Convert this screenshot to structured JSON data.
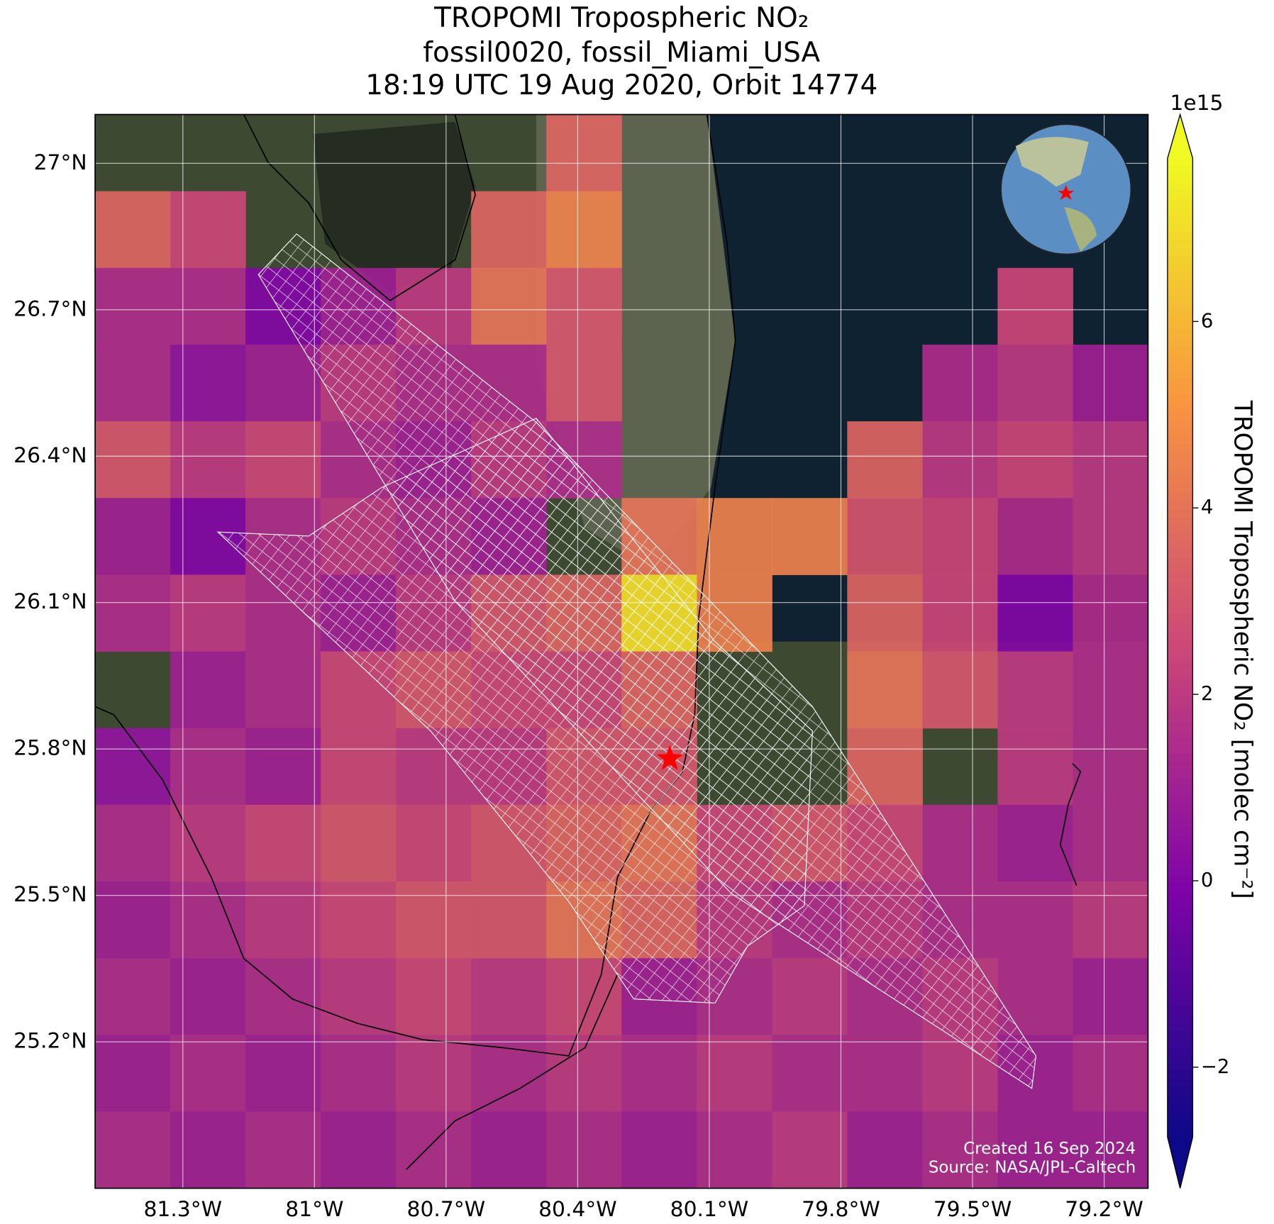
{
  "map": {
    "type": "raster",
    "title": [
      "TROPOMI Tropospheric NO₂",
      "fossil0020, fossil_Miami_USA",
      "18:19 UTC 19 Aug 2020, Orbit 14774"
    ],
    "xlim": [
      -81.5,
      -79.1
    ],
    "ylim": [
      24.9,
      27.1
    ],
    "xticks": [
      {
        "value": -81.3,
        "label": "81.3°W"
      },
      {
        "value": -81.0,
        "label": "81°W"
      },
      {
        "value": -80.7,
        "label": "80.7°W"
      },
      {
        "value": -80.4,
        "label": "80.4°W"
      },
      {
        "value": -80.1,
        "label": "80.1°W"
      },
      {
        "value": -79.8,
        "label": "79.8°W"
      },
      {
        "value": -79.5,
        "label": "79.5°W"
      },
      {
        "value": -79.2,
        "label": "79.2°W"
      }
    ],
    "yticks": [
      {
        "value": 27.0,
        "label": "27°N"
      },
      {
        "value": 26.7,
        "label": "26.7°N"
      },
      {
        "value": 26.4,
        "label": "26.4°N"
      },
      {
        "value": 26.1,
        "label": "26.1°N"
      },
      {
        "value": 25.8,
        "label": "25.8°N"
      },
      {
        "value": 25.5,
        "label": "25.5°N"
      },
      {
        "value": 25.2,
        "label": "25.2°N"
      }
    ],
    "grid": true,
    "colormap": "plasma",
    "clim": [
      -2.75,
      7.75
    ],
    "colorbar_ticks": [
      {
        "value": -2,
        "label": "−2"
      },
      0,
      2,
      4,
      6
    ],
    "colorbar_scale": "1e15",
    "colorbar_label": "TROPOMI Tropospheric NO₂ [molec cm⁻²]",
    "marker": {
      "lon": -80.19,
      "lat": 25.78,
      "color": "#ff0000"
    },
    "no2_grid": [
      [
        null,
        null,
        null,
        null,
        null,
        null,
        3.5,
        null,
        null,
        null,
        null,
        null,
        null,
        null
      ],
      [
        3.5,
        2.5,
        null,
        null,
        null,
        3.5,
        4.5,
        null,
        null,
        null,
        null,
        null,
        null,
        null
      ],
      [
        1.5,
        1.5,
        0,
        1,
        2,
        4,
        3,
        null,
        null,
        null,
        null,
        null,
        2.5,
        null
      ],
      [
        1.5,
        0.5,
        1,
        2,
        1.5,
        1.5,
        3,
        null,
        null,
        null,
        null,
        1.5,
        2,
        1
      ],
      [
        3,
        2,
        2.5,
        1.5,
        1,
        2,
        1.5,
        null,
        null,
        null,
        3.5,
        2,
        2.5,
        2
      ],
      [
        1,
        0,
        1.5,
        2,
        1.5,
        1,
        null,
        4,
        4.5,
        4.5,
        3,
        2.5,
        1.5,
        2
      ],
      [
        1.5,
        2,
        1.5,
        1,
        2,
        3,
        3.5,
        7,
        4.5,
        null,
        3.5,
        2.5,
        0,
        1.5
      ],
      [
        null,
        1,
        1.5,
        2.5,
        3,
        2.5,
        2.5,
        3.5,
        null,
        null,
        4,
        3,
        2,
        1.5
      ],
      [
        0.5,
        1.5,
        1,
        2.5,
        2,
        2,
        3,
        3,
        null,
        null,
        3.5,
        null,
        2,
        1.5
      ],
      [
        1.5,
        2,
        2.5,
        3,
        2.5,
        3,
        3.5,
        4,
        2.5,
        3,
        2.5,
        1.5,
        1,
        1.5
      ],
      [
        1,
        1.5,
        2,
        2.5,
        3,
        3,
        4,
        3.5,
        2,
        1.5,
        2,
        1.5,
        1.5,
        2
      ],
      [
        1.5,
        1,
        1.5,
        2,
        2.5,
        2,
        2.5,
        1,
        1.5,
        2,
        1.5,
        2,
        1.5,
        1
      ],
      [
        1,
        1.5,
        1,
        1.5,
        2,
        1.5,
        2,
        1.5,
        2,
        1.5,
        1.5,
        2,
        1,
        1.5
      ],
      [
        1.5,
        1,
        1.5,
        1,
        1.5,
        1,
        1.5,
        1,
        1.5,
        2,
        1,
        1.5,
        1,
        1
      ]
    ],
    "credits": [
      "Created 16 Sep 2024",
      "Source: NASA/JPL-Caltech"
    ]
  }
}
